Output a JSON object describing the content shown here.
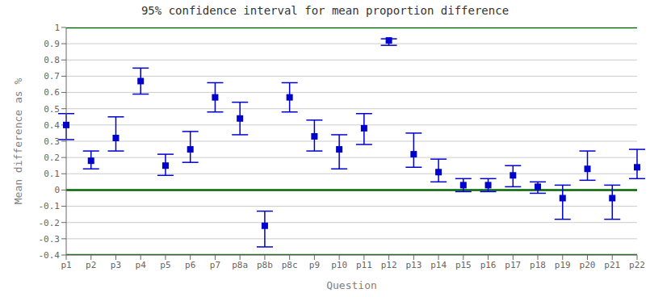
{
  "chart_data": {
    "type": "scatter",
    "title": "95% confidence interval for mean proportion difference",
    "x_label": "Question",
    "y_label": "Mean difference as %",
    "categories": [
      "p1",
      "p2",
      "p3",
      "p4",
      "p5",
      "p6",
      "p7",
      "p8a",
      "p8b",
      "p8c",
      "p9",
      "p10",
      "p11",
      "p12",
      "p13",
      "p14",
      "p15",
      "p16",
      "p17",
      "p18",
      "p19",
      "p20",
      "p21",
      "p22"
    ],
    "values": [
      0.4,
      0.18,
      0.32,
      0.67,
      0.15,
      0.25,
      0.57,
      0.44,
      -0.22,
      0.57,
      0.33,
      0.25,
      0.38,
      0.92,
      0.22,
      0.11,
      0.03,
      0.03,
      0.09,
      0.02,
      -0.05,
      0.13,
      -0.05,
      0.14
    ],
    "lower_err": [
      0.09,
      0.05,
      0.08,
      0.08,
      0.06,
      0.08,
      0.09,
      0.1,
      0.13,
      0.09,
      0.09,
      0.12,
      0.1,
      0.03,
      0.08,
      0.06,
      0.04,
      0.04,
      0.07,
      0.04,
      0.13,
      0.07,
      0.13,
      0.07
    ],
    "upper_err": [
      0.07,
      0.06,
      0.13,
      0.08,
      0.07,
      0.11,
      0.09,
      0.1,
      0.09,
      0.09,
      0.1,
      0.09,
      0.09,
      0.01,
      0.13,
      0.08,
      0.04,
      0.04,
      0.06,
      0.03,
      0.08,
      0.11,
      0.08,
      0.11
    ],
    "color": "#0000cc",
    "marker": "square",
    "hlines": [
      {
        "value": 0,
        "color": "#006600"
      },
      {
        "value": -0.4,
        "color": "#006600"
      },
      {
        "value": 1.0,
        "color": "#006600"
      }
    ],
    "ylim": [
      -0.4,
      1.0
    ],
    "yticks": [
      -0.4,
      -0.3,
      -0.2,
      -0.1,
      0,
      0.1,
      0.2,
      0.3,
      0.4,
      0.5,
      0.6,
      0.7,
      0.8,
      0.9,
      1
    ],
    "grid": true
  }
}
